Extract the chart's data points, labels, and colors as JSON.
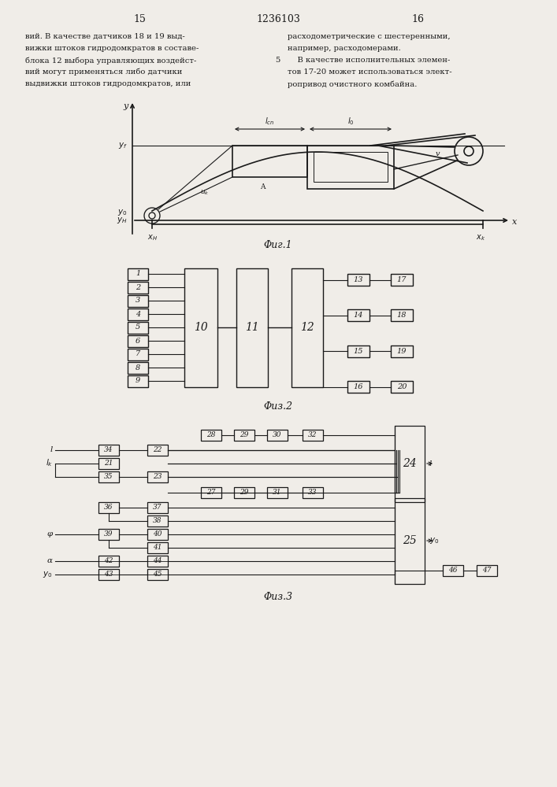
{
  "page_title": "1236103",
  "page_left": "15",
  "page_right": "16",
  "bg_color": "#f0ede8",
  "text_color": "#1a1a1a",
  "left_text": [
    "вий. В качестве датчиков 18 и 19 выд-",
    "вижки штоков гидродомкратов в составе-",
    "блока 12 выбора управляющих воздейст-",
    "вий могут применяться либо датчики",
    "выдвижки штоков гидродомкратов, или"
  ],
  "right_text": [
    "расходометрические с шестеренными,",
    "например, расходомерами.",
    "    В качестве исполнительных элемен-",
    "тов 17-20 может использоваться элект-",
    "ропривод очистного комбайна."
  ],
  "line_number": "5",
  "fig1_caption": "Φиг.1",
  "fig2_caption": "Φиз.2",
  "fig3_caption": "Φиз.3"
}
